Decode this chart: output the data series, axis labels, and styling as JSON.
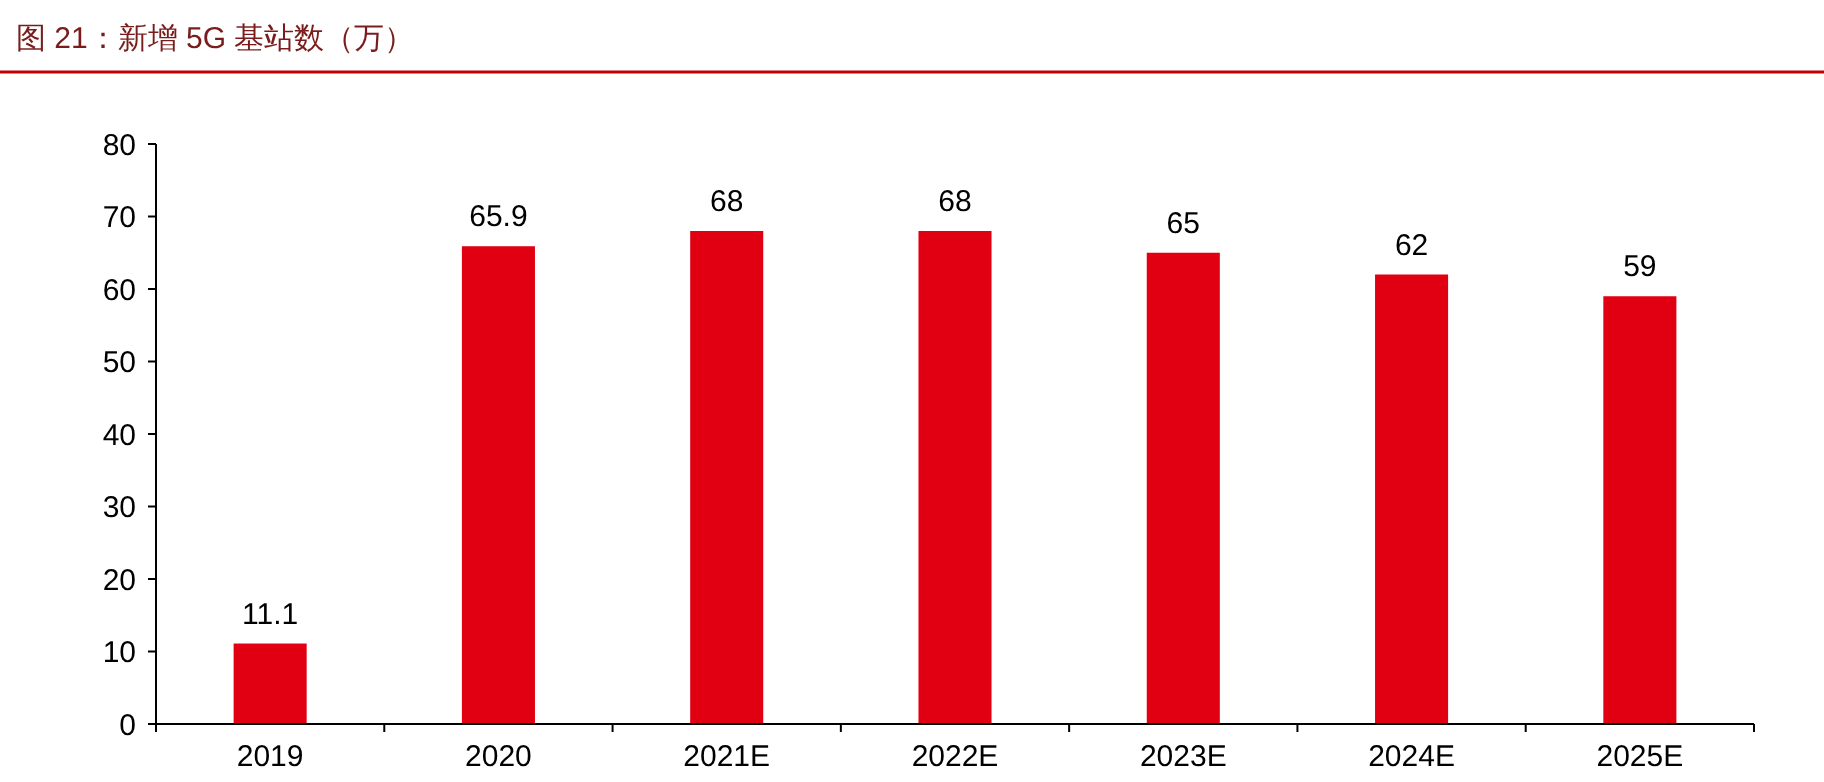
{
  "chart_data": {
    "type": "bar",
    "title": "图 21：新增 5G 基站数（万）",
    "categories": [
      "2019",
      "2020",
      "2021E",
      "2022E",
      "2023E",
      "2024E",
      "2025E"
    ],
    "values": [
      11.1,
      65.9,
      68,
      68,
      65,
      62,
      59
    ],
    "value_labels": [
      "11.1",
      "65.9",
      "68",
      "68",
      "65",
      "62",
      "59"
    ],
    "color": "#e00012",
    "ylim": [
      0,
      80
    ],
    "yticks": [
      0,
      10,
      20,
      30,
      40,
      50,
      60,
      70,
      80
    ]
  }
}
